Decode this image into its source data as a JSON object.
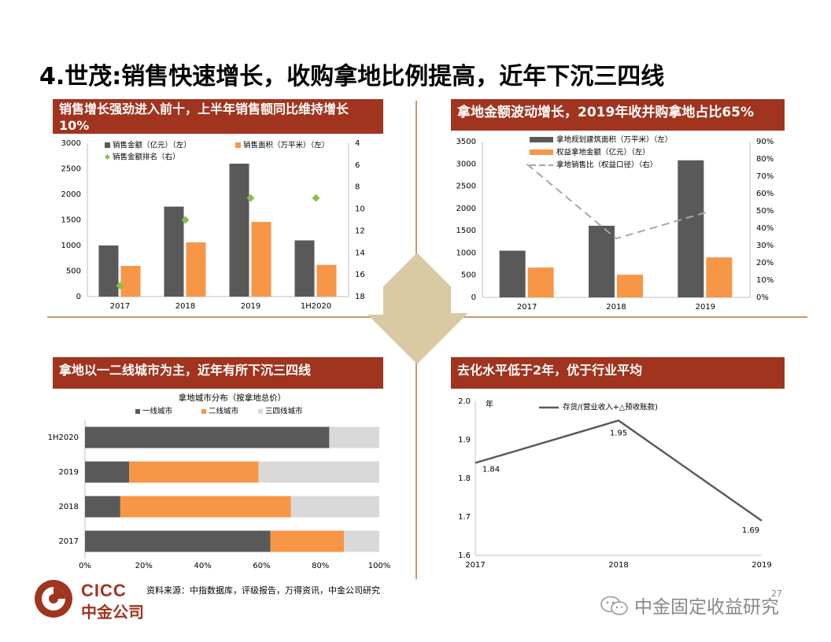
{
  "slide_title": "4.世茂:销售快速增长，收购拿地比例提高，近年下沉三四线",
  "panels": {
    "p1_header": "销售增长强劲进入前十，上半年销售额同比维持增长10%",
    "p2_header": "拿地金额波动增长，2019年收并购拿地占比65%",
    "p3_header": "拿地以一二线城市为主，近年有所下沉三四线",
    "p4_header": "去化水平低于2年，优于行业平均"
  },
  "colors": {
    "header_bg": "#a0341f",
    "dark": "#595959",
    "orange": "#f79646",
    "light": "#d9d9d9",
    "green": "#8cbd4e",
    "dash": "#a6a6a6"
  },
  "chart_data": [
    {
      "type": "bar",
      "categories": [
        "2017",
        "2018",
        "2019",
        "1H2020"
      ],
      "series": [
        {
          "name": "销售金额（亿元）（左）",
          "type": "bar",
          "axis": "left",
          "values": [
            1000,
            1760,
            2600,
            1100
          ]
        },
        {
          "name": "销售面积（万平米）（左）",
          "type": "bar",
          "axis": "left",
          "values": [
            600,
            1060,
            1460,
            620
          ]
        },
        {
          "name": "销售金额排名（右）",
          "type": "scatter",
          "axis": "right",
          "values": [
            17,
            11,
            9,
            9
          ]
        }
      ],
      "ylim": [
        0,
        3000
      ],
      "yticks": [
        "0",
        "500",
        "1000",
        "1500",
        "2000",
        "2500",
        "3000"
      ],
      "y2lim": [
        18,
        4
      ],
      "y2ticks": [
        "4",
        "6",
        "8",
        "10",
        "12",
        "14",
        "16",
        "18"
      ],
      "legend": "top"
    },
    {
      "type": "bar",
      "categories": [
        "2017",
        "2018",
        "2019"
      ],
      "series": [
        {
          "name": "拿地规划建筑面积（万平米）（左）",
          "type": "bar",
          "axis": "left",
          "values": [
            1050,
            1610,
            3080
          ]
        },
        {
          "name": "权益拿地金额（亿元）（左）",
          "type": "bar",
          "axis": "left",
          "values": [
            670,
            510,
            900
          ]
        },
        {
          "name": "拿地销售比（权益口径）（右）",
          "type": "line",
          "axis": "right",
          "values": [
            0.77,
            0.34,
            0.49
          ]
        }
      ],
      "ylim": [
        0,
        3500
      ],
      "yticks": [
        "0",
        "500",
        "1000",
        "1500",
        "2000",
        "2500",
        "3000",
        "3500"
      ],
      "y2lim": [
        0,
        0.9
      ],
      "y2ticks": [
        "0%",
        "10%",
        "20%",
        "30%",
        "40%",
        "50%",
        "60%",
        "70%",
        "80%",
        "90%"
      ],
      "legend": "top"
    },
    {
      "type": "bar",
      "title": "拿地城市分布（按拿地总价）",
      "categories": [
        "1H2020",
        "2019",
        "2018",
        "2017"
      ],
      "series": [
        {
          "name": "一线城市",
          "values": [
            0.83,
            0.15,
            0.12,
            0.63
          ]
        },
        {
          "name": "二线城市",
          "values": [
            0.0,
            0.44,
            0.58,
            0.25
          ]
        },
        {
          "name": "三四线城市",
          "values": [
            0.17,
            0.41,
            0.3,
            0.12
          ]
        }
      ],
      "xticks": [
        "0%",
        "20%",
        "40%",
        "60%",
        "80%",
        "100%"
      ],
      "stacked": true,
      "orientation": "horizontal",
      "legend": "top"
    },
    {
      "type": "line",
      "x": [
        "2017",
        "2018",
        "2019"
      ],
      "series": [
        {
          "name": "存货/(营业收入+△预收账款)",
          "values": [
            1.84,
            1.95,
            1.69
          ],
          "labels": [
            "1.84",
            "1.95",
            "1.69"
          ]
        }
      ],
      "ylabel": "年",
      "ylim": [
        1.6,
        2.0
      ],
      "yticks": [
        "1.6",
        "1.7",
        "1.8",
        "1.9",
        "2.0"
      ],
      "legend": "top"
    }
  ],
  "footer": {
    "source": "资料来源：中指数据库，评级报告，万得资讯，中金公司研究",
    "logo_en": "CICC",
    "logo_cn": "中金公司",
    "page_number": "27",
    "wechat_name": "中金固定收益研究"
  }
}
